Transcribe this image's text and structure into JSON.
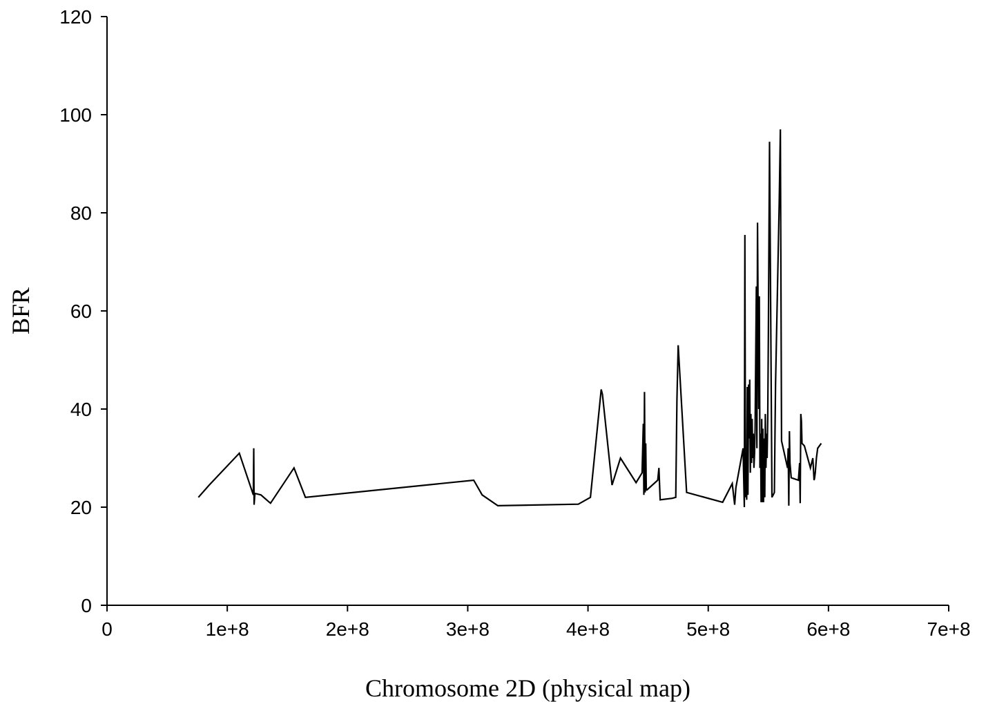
{
  "chart_data": {
    "type": "line",
    "title": "",
    "xlabel": "Chromosome 2D (physical map)",
    "ylabel": "BFR",
    "xlim": [
      0,
      700000000
    ],
    "ylim": [
      0,
      120
    ],
    "xticks": [
      0,
      100000000,
      200000000,
      300000000,
      400000000,
      500000000,
      600000000,
      700000000
    ],
    "xtick_labels": [
      "0",
      "1e+8",
      "2e+8",
      "3e+8",
      "4e+8",
      "5e+8",
      "6e+8",
      "7e+8"
    ],
    "yticks": [
      0,
      20,
      40,
      60,
      80,
      100,
      120
    ],
    "ytick_labels": [
      "0",
      "20",
      "40",
      "60",
      "80",
      "100",
      "120"
    ],
    "grid": false,
    "line_color": "#000000",
    "series": [
      {
        "x": [
          76000000,
          85000000,
          110000000,
          121700000,
          122000000,
          122300000,
          123000000,
          128000000,
          135000000,
          136000000,
          155500000,
          165000000,
          305000000,
          312000000,
          325000000,
          392000000,
          402000000,
          411000000,
          412000000,
          420000000,
          427000000,
          440000000,
          445000000,
          446000000,
          446500000,
          447000000,
          447500000,
          448000000,
          448500000,
          449000000,
          458000000,
          459000000,
          460000000,
          470000000,
          473000000,
          474000000,
          475000000,
          482000000,
          512000000,
          520000000,
          522000000,
          523000000,
          529000000,
          530000000,
          530500000,
          531000000,
          531500000,
          532000000,
          532500000,
          533000000,
          533500000,
          534000000,
          534500000,
          535000000,
          535500000,
          536000000,
          536500000,
          537000000,
          537500000,
          538000000,
          538500000,
          539000000,
          540000000,
          540500000,
          541000000,
          542000000,
          542500000,
          543000000,
          543500000,
          544000000,
          544500000,
          545000000,
          545500000,
          546000000,
          546500000,
          547000000,
          547500000,
          548000000,
          548500000,
          549000000,
          549500000,
          550000000,
          551000000,
          553000000,
          554000000,
          555000000,
          555500000,
          556000000,
          559000000,
          560000000,
          561000000,
          566000000,
          566500000,
          567000000,
          567500000,
          568000000,
          569000000,
          575000000,
          576000000,
          576500000,
          577000000,
          577500000,
          578000000,
          580000000,
          585000000,
          587000000,
          588000000,
          588500000,
          589000000,
          590000000,
          591000000,
          594000000
        ],
        "y": [
          22,
          24.5,
          31,
          22.5,
          32,
          20.5,
          22.8,
          22.5,
          21,
          20.8,
          28,
          22,
          25.5,
          22.5,
          20.3,
          20.6,
          22,
          44,
          43,
          24.5,
          30,
          25,
          27,
          37,
          22.5,
          43.5,
          23,
          33,
          23.5,
          23.5,
          25.5,
          28,
          21.5,
          21.8,
          22,
          42,
          53,
          23,
          21,
          24.8,
          20.5,
          24,
          32,
          20,
          75.5,
          22,
          30.5,
          21.5,
          44.5,
          22.5,
          45,
          34,
          46,
          27,
          39,
          29,
          38,
          30,
          35,
          28,
          31,
          36,
          65,
          32,
          78,
          40,
          63,
          28,
          35,
          21,
          38,
          21,
          36,
          21,
          34,
          22,
          39,
          28,
          35,
          30,
          38,
          55,
          94.5,
          22,
          22.5,
          23,
          35,
          45,
          82,
          97,
          33.5,
          28,
          32,
          20.3,
          35.5,
          29,
          26,
          25.5,
          29,
          20.8,
          39,
          37.5,
          33,
          32.5,
          28,
          30,
          25.5,
          26,
          27,
          30,
          32,
          33
        ]
      }
    ]
  }
}
